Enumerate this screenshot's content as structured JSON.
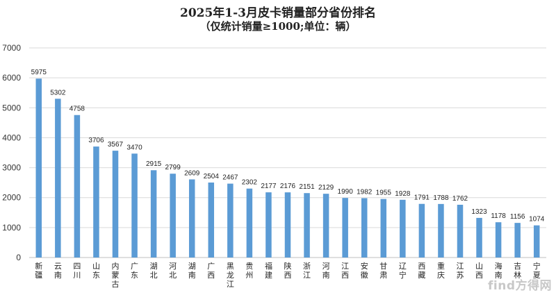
{
  "chart_data": {
    "type": "bar",
    "title": "2025年1-3月皮卡销量部分省份排名",
    "subtitle": "（仅统计销量≥1000;单位：辆）",
    "xlabel": "",
    "ylabel": "",
    "ylim": [
      0,
      7000
    ],
    "yticks": [
      0,
      1000,
      2000,
      3000,
      4000,
      5000,
      6000,
      7000
    ],
    "grid": true,
    "bar_color": "#5b9bd5",
    "categories": [
      "新疆",
      "云南",
      "四川",
      "山东",
      "内蒙古",
      "广东",
      "湖北",
      "河北",
      "湖南",
      "广西",
      "黑龙江",
      "贵州",
      "福建",
      "陕西",
      "浙江",
      "河南",
      "江西",
      "安徽",
      "甘肃",
      "辽宁",
      "西藏",
      "重庆",
      "江苏",
      "山西",
      "海南",
      "吉林",
      "宁夏"
    ],
    "values": [
      5975,
      5302,
      4758,
      3706,
      3567,
      3470,
      2915,
      2799,
      2609,
      2504,
      2467,
      2302,
      2177,
      2176,
      2151,
      2129,
      1990,
      1982,
      1955,
      1928,
      1791,
      1788,
      1762,
      1323,
      1178,
      1156,
      1074
    ]
  },
  "watermark": "find方得网"
}
